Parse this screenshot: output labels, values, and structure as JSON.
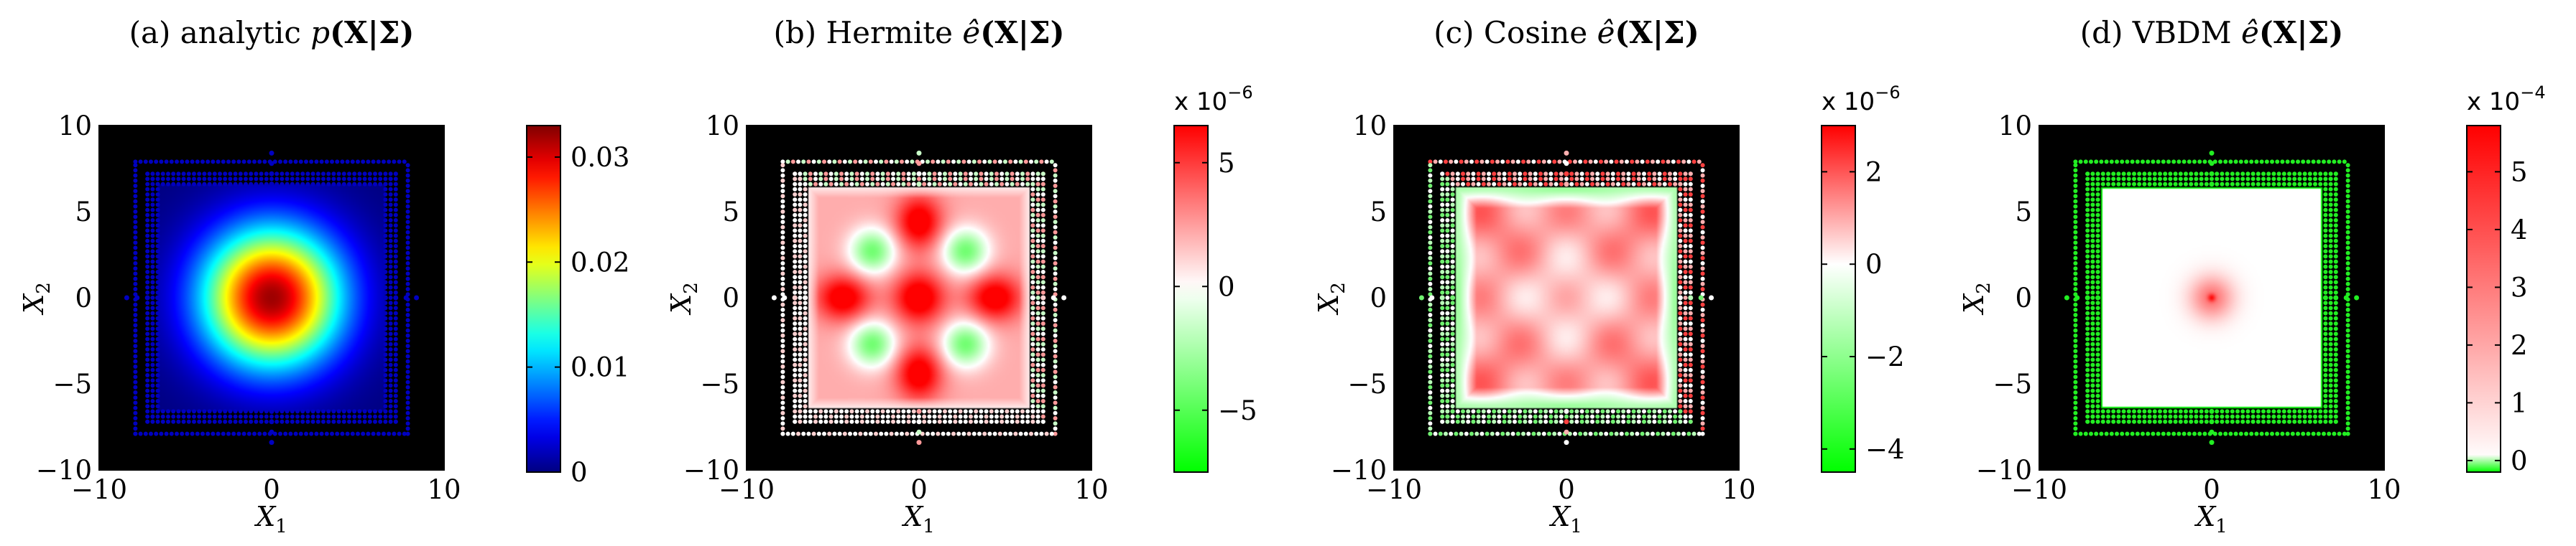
{
  "chart_data": [
    {
      "type": "heatmap",
      "panel": "a",
      "title": "(a) analytic p(X|Σ)",
      "title_parts": {
        "prefix": "(a) analytic ",
        "func": "p",
        "arg": "(X|Σ)"
      },
      "xlabel": "X1",
      "ylabel": "X2",
      "xlim": [
        -10,
        10
      ],
      "ylim": [
        -10,
        10
      ],
      "xticks": [
        "−10",
        "0",
        "10"
      ],
      "yticks": [
        "10",
        "5",
        "0",
        "−5",
        "−10"
      ],
      "colormap": "jet",
      "field": {
        "kind": "gaussian",
        "peak": 0.032,
        "sigma": 2.8
      },
      "sample_marker_color": "#0000c0",
      "colorbar": {
        "min": 0,
        "max": 0.033,
        "ticks": [
          0.03,
          0.02,
          0.01,
          0
        ],
        "tick_labels": [
          "0.03",
          "0.02",
          "0.01",
          "0"
        ],
        "multiplier": ""
      }
    },
    {
      "type": "heatmap",
      "panel": "b",
      "title": "(b) Hermite ê(X|Σ)",
      "title_parts": {
        "prefix": "(b) Hermite ",
        "func": "ê",
        "arg": "(X|Σ)"
      },
      "xlabel": "X1",
      "ylabel": "X2",
      "xlim": [
        -10,
        10
      ],
      "ylim": [
        -10,
        10
      ],
      "xticks": [
        "−10",
        "0",
        "10"
      ],
      "yticks": [
        "10",
        "5",
        "0",
        "−5",
        "−10"
      ],
      "colormap": "green-white-red",
      "field": {
        "kind": "hermite",
        "min": -7.5,
        "max": 6.5
      },
      "colorbar": {
        "min": -7.5,
        "max": 6.5,
        "ticks": [
          5,
          0,
          -5
        ],
        "tick_labels": [
          "5",
          "0",
          "−5"
        ],
        "multiplier": "x 10",
        "exponent": "−6"
      }
    },
    {
      "type": "heatmap",
      "panel": "c",
      "title": "(c) Cosine ê(X|Σ)",
      "title_parts": {
        "prefix": "(c) Cosine ",
        "func": "ê",
        "arg": "(X|Σ)"
      },
      "xlabel": "X1",
      "ylabel": "X2",
      "xlim": [
        -10,
        10
      ],
      "ylim": [
        -10,
        10
      ],
      "xticks": [
        "−10",
        "0",
        "10"
      ],
      "yticks": [
        "10",
        "5",
        "0",
        "−5",
        "−10"
      ],
      "colormap": "green-white-red",
      "field": {
        "kind": "cosine",
        "min": -4.5,
        "max": 3
      },
      "colorbar": {
        "min": -4.5,
        "max": 3,
        "ticks": [
          2,
          0,
          -2,
          -4
        ],
        "tick_labels": [
          "2",
          "0",
          "−2",
          "−4"
        ],
        "multiplier": "x 10",
        "exponent": "−6"
      }
    },
    {
      "type": "heatmap",
      "panel": "d",
      "title": "(d) VBDM ê(X|Σ)",
      "title_parts": {
        "prefix": "(d) VBDM ",
        "func": "ê",
        "arg": "(X|Σ)"
      },
      "xlabel": "X1",
      "ylabel": "X2",
      "xlim": [
        -10,
        10
      ],
      "ylim": [
        -10,
        10
      ],
      "xticks": [
        "−10",
        "0",
        "10"
      ],
      "yticks": [
        "10",
        "5",
        "0",
        "−5",
        "−10"
      ],
      "colormap": "green-white-red",
      "field": {
        "kind": "vbdm",
        "min": -0.2,
        "max": 5.8
      },
      "colorbar": {
        "min": -0.2,
        "max": 5.8,
        "ticks": [
          5,
          4,
          3,
          2,
          1,
          0
        ],
        "tick_labels": [
          "5",
          "4",
          "3",
          "2",
          "1",
          "0"
        ],
        "multiplier": "x 10",
        "exponent": "−4"
      }
    }
  ],
  "colors": {
    "background": "#000000",
    "axis": "#000000",
    "green": "#00ff00",
    "white": "#ffffff",
    "red": "#ff0000"
  }
}
